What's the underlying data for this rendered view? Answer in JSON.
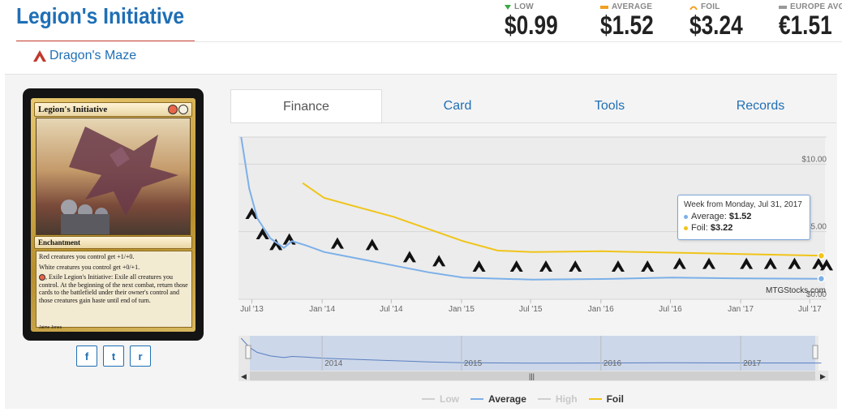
{
  "card": {
    "title": "Legion's Initiative",
    "set_name": "Dragon's Maze",
    "image": {
      "name": "Legion's Initiative",
      "type_line": "Enchantment",
      "text_lines": [
        "Red creatures you control get +1/+0.",
        "White creatures you control get +0/+1.",
        ", Exile Legion's Initiative: Exile all creatures you control. At the beginning of the next combat, return those cards to the battlefield under their owner's control and those creatures gain haste until end of turn."
      ],
      "artist": "Jaime Jones"
    }
  },
  "prices": {
    "low_label": "LOW",
    "low": "$0.99",
    "average_label": "AVERAGE",
    "average": "$1.52",
    "foil_label": "FOIL",
    "foil": "$3.24",
    "europe_label": "EUROPE AVG",
    "europe": "€1.51"
  },
  "tabs": [
    "Finance",
    "Card",
    "Tools",
    "Records"
  ],
  "active_tab": "Finance",
  "social": {
    "facebook": "f",
    "twitter": "t",
    "reddit": "r"
  },
  "tooltip": {
    "header": "Week from Monday, Jul 31, 2017",
    "average_label": "Average:",
    "average_value": "$1.52",
    "foil_label": "Foil:",
    "foil_value": "$3.22"
  },
  "credit": "MTGStocks.com",
  "legend": [
    "Low",
    "Average",
    "High",
    "Foil"
  ],
  "colors": {
    "average": "#7cb0e8",
    "foil": "#f0c419",
    "low": "#cfcfcf",
    "high": "#cfcfcf",
    "accent": "#1f6fb5"
  },
  "chart_data": {
    "type": "line",
    "x_ticks": [
      "Jul '13",
      "Jan '14",
      "Jul '14",
      "Jan '15",
      "Jul '15",
      "Jan '16",
      "Jul '16",
      "Jan '17",
      "Jul '17"
    ],
    "y_ticks": [
      "$10.00",
      "$5.00",
      "$0.00"
    ],
    "navigator_ticks": [
      "2014",
      "2015",
      "2016",
      "2017"
    ],
    "ylim": [
      0,
      12
    ],
    "series": [
      {
        "name": "Average",
        "color": "#7cb0e8",
        "points": [
          [
            "2013-06-03",
            12.0
          ],
          [
            "2013-06-24",
            8.2
          ],
          [
            "2013-07-15",
            6.0
          ],
          [
            "2013-08-19",
            4.5
          ],
          [
            "2013-09-23",
            3.8
          ],
          [
            "2013-10-14",
            4.3
          ],
          [
            "2013-11-18",
            4.0
          ],
          [
            "2014-01-06",
            3.5
          ],
          [
            "2014-04-07",
            3.0
          ],
          [
            "2014-07-07",
            2.5
          ],
          [
            "2014-10-06",
            2.0
          ],
          [
            "2015-01-05",
            1.6
          ],
          [
            "2015-07-06",
            1.45
          ],
          [
            "2016-01-04",
            1.5
          ],
          [
            "2016-07-04",
            1.6
          ],
          [
            "2017-01-02",
            1.55
          ],
          [
            "2017-07-31",
            1.52
          ]
        ]
      },
      {
        "name": "Foil",
        "color": "#f0c419",
        "points": [
          [
            "2013-11-11",
            8.6
          ],
          [
            "2014-01-06",
            7.5
          ],
          [
            "2014-04-07",
            6.8
          ],
          [
            "2014-07-07",
            6.1
          ],
          [
            "2014-10-06",
            5.2
          ],
          [
            "2015-01-05",
            4.3
          ],
          [
            "2015-04-06",
            3.6
          ],
          [
            "2015-07-06",
            3.5
          ],
          [
            "2016-01-04",
            3.55
          ],
          [
            "2016-07-04",
            3.45
          ],
          [
            "2017-01-02",
            3.35
          ],
          [
            "2017-07-31",
            3.22
          ]
        ]
      }
    ]
  }
}
